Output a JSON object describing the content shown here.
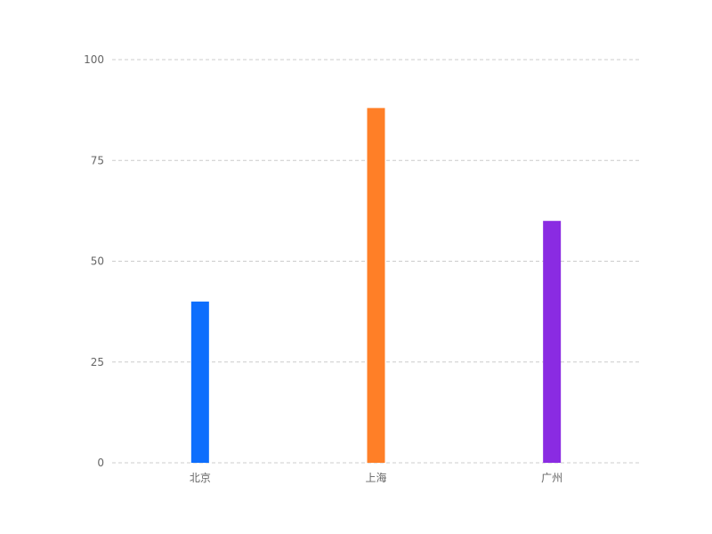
{
  "chart_data": {
    "type": "bar",
    "categories": [
      "北京",
      "上海",
      "广州"
    ],
    "values": [
      40,
      88,
      60
    ],
    "colors": [
      "#0d6efd",
      "#ff7f27",
      "#8a2be2"
    ],
    "ylim": [
      0,
      100
    ],
    "yticks": [
      0,
      25,
      50,
      75,
      100
    ],
    "grid": true,
    "legend": "none",
    "title": "",
    "xlabel": "",
    "ylabel": ""
  }
}
